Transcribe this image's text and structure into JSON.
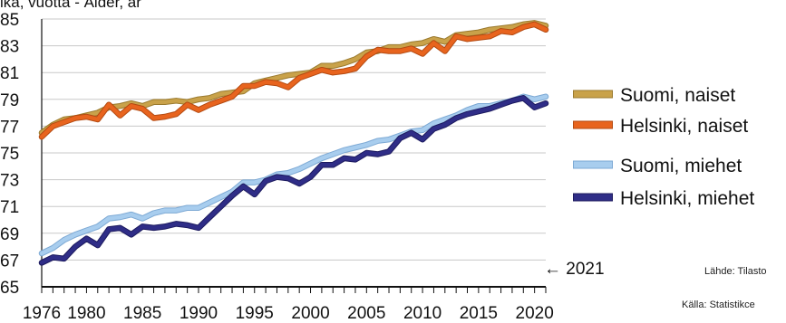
{
  "chart_data": {
    "type": "line",
    "ylabel": "ikä, vuotta - Ålder, år",
    "ylim": [
      65,
      85
    ],
    "yticks": [
      65,
      67,
      69,
      71,
      73,
      75,
      77,
      79,
      81,
      83,
      85
    ],
    "xlim": [
      1976,
      2021
    ],
    "xticks": [
      1976,
      1980,
      1985,
      1990,
      1995,
      2000,
      2005,
      2010,
      2015,
      2020
    ],
    "grid": "horizontal",
    "legend_position": "right",
    "annotation": "← 2021",
    "x": [
      1976,
      1977,
      1978,
      1979,
      1980,
      1981,
      1982,
      1983,
      1984,
      1985,
      1986,
      1987,
      1988,
      1989,
      1990,
      1991,
      1992,
      1993,
      1994,
      1995,
      1996,
      1997,
      1998,
      1999,
      2000,
      2001,
      2002,
      2003,
      2004,
      2005,
      2006,
      2007,
      2008,
      2009,
      2010,
      2011,
      2012,
      2013,
      2014,
      2015,
      2016,
      2017,
      2018,
      2019,
      2020,
      2021
    ],
    "series": [
      {
        "name": "Suomi, naiset",
        "color": "#c9a24a",
        "values": [
          76.5,
          77.1,
          77.5,
          77.6,
          77.8,
          78.0,
          78.4,
          78.5,
          78.7,
          78.5,
          78.8,
          78.8,
          78.9,
          78.8,
          79.0,
          79.1,
          79.4,
          79.5,
          79.6,
          80.2,
          80.4,
          80.6,
          80.8,
          80.9,
          81.0,
          81.5,
          81.5,
          81.7,
          82.0,
          82.5,
          82.6,
          82.9,
          82.9,
          83.1,
          83.2,
          83.5,
          83.3,
          83.8,
          83.9,
          84.0,
          84.2,
          84.3,
          84.4,
          84.6,
          84.7,
          84.5
        ]
      },
      {
        "name": "Helsinki, naiset",
        "color": "#e8641e",
        "values": [
          76.2,
          77.0,
          77.3,
          77.6,
          77.7,
          77.5,
          78.6,
          77.8,
          78.5,
          78.3,
          77.6,
          77.7,
          77.9,
          78.6,
          78.2,
          78.6,
          78.9,
          79.2,
          80.0,
          80.0,
          80.3,
          80.2,
          79.9,
          80.6,
          80.9,
          81.2,
          81.0,
          81.1,
          81.3,
          82.2,
          82.7,
          82.6,
          82.6,
          82.8,
          82.4,
          83.2,
          82.6,
          83.7,
          83.5,
          83.6,
          83.7,
          84.1,
          84.0,
          84.4,
          84.6,
          84.2
        ]
      },
      {
        "name": "Suomi, miehet",
        "color": "#a8cdee",
        "values": [
          67.5,
          67.9,
          68.5,
          68.9,
          69.2,
          69.5,
          70.1,
          70.2,
          70.4,
          70.1,
          70.5,
          70.7,
          70.7,
          70.9,
          70.9,
          71.3,
          71.7,
          72.1,
          72.8,
          72.8,
          73.0,
          73.4,
          73.5,
          73.8,
          74.2,
          74.6,
          74.9,
          75.2,
          75.4,
          75.6,
          75.9,
          76.0,
          76.3,
          76.6,
          76.7,
          77.2,
          77.5,
          77.8,
          78.2,
          78.5,
          78.5,
          78.7,
          78.9,
          79.2,
          79.0,
          79.2
        ]
      },
      {
        "name": "Helsinki, miehet",
        "color": "#2f2d87",
        "values": [
          66.8,
          67.2,
          67.1,
          68.0,
          68.6,
          68.1,
          69.3,
          69.4,
          68.9,
          69.5,
          69.4,
          69.5,
          69.7,
          69.6,
          69.4,
          70.2,
          71.0,
          71.8,
          72.5,
          71.9,
          72.9,
          73.2,
          73.1,
          72.7,
          73.2,
          74.1,
          74.1,
          74.6,
          74.5,
          75.0,
          74.9,
          75.1,
          76.1,
          76.5,
          76.0,
          76.8,
          77.1,
          77.6,
          77.9,
          78.1,
          78.3,
          78.6,
          78.9,
          79.1,
          78.4,
          78.7
        ]
      }
    ]
  },
  "source": {
    "line1": "Lähde: Tilasto",
    "line2": "Källa: Statistikce"
  }
}
